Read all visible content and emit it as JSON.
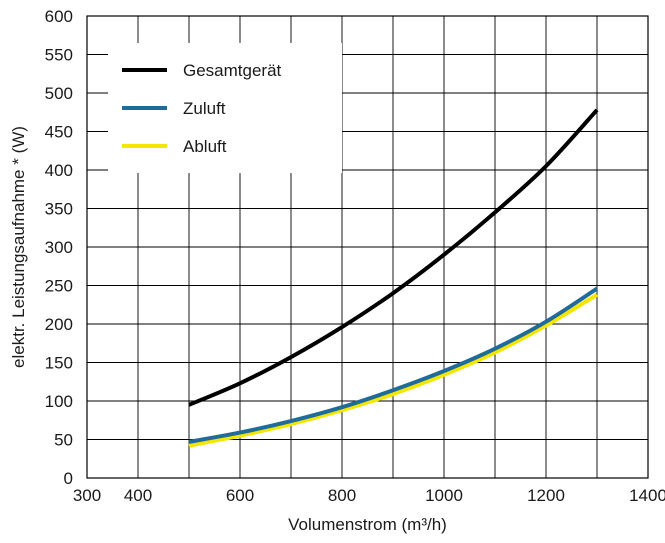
{
  "chart_data": {
    "type": "line",
    "xlabel": "Volumenstrom (m³/h)",
    "ylabel": "elektr. Leistungsaufnahme * (W)",
    "xlim": [
      300,
      1400
    ],
    "ylim": [
      0,
      600
    ],
    "xticks": [
      300,
      400,
      600,
      800,
      1000,
      1200,
      1400
    ],
    "yticks": [
      0,
      50,
      100,
      150,
      200,
      250,
      300,
      350,
      400,
      450,
      500,
      550,
      600
    ],
    "x_gridlines": [
      300,
      400,
      500,
      600,
      700,
      800,
      900,
      1000,
      1100,
      1200,
      1300,
      1400
    ],
    "grid": true,
    "legend": {
      "position": "top-left"
    },
    "series": [
      {
        "name": "Gesamtgerät",
        "color": "#000000",
        "x": [
          500,
          600,
          700,
          800,
          900,
          1000,
          1100,
          1200,
          1300
        ],
        "y": [
          95,
          123,
          157,
          196,
          240,
          290,
          345,
          405,
          478
        ]
      },
      {
        "name": "Zuluft",
        "color": "#1f6b9a",
        "x": [
          500,
          600,
          700,
          800,
          900,
          1000,
          1100,
          1200,
          1300
        ],
        "y": [
          47,
          59,
          74,
          92,
          114,
          139,
          168,
          203,
          246
        ]
      },
      {
        "name": "Abluft",
        "color": "#f3e600",
        "x": [
          500,
          600,
          700,
          800,
          900,
          1000,
          1100,
          1200,
          1300
        ],
        "y": [
          42,
          55,
          70,
          88,
          109,
          134,
          163,
          198,
          238
        ]
      }
    ]
  }
}
